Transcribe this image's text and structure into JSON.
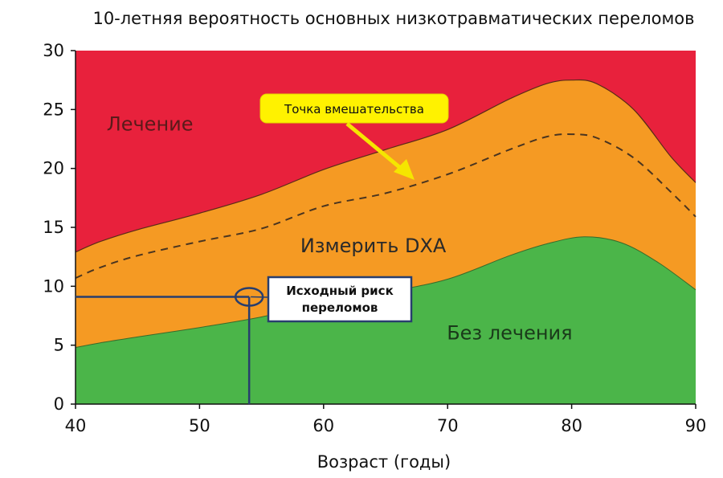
{
  "chart_data": {
    "type": "area",
    "title": "10-летняя вероятность основных низкотравматических переломов",
    "xlabel": "Возраст (годы)",
    "ylabel": "",
    "xlim": [
      40,
      90
    ],
    "ylim": [
      0,
      30
    ],
    "x_ticks": [
      40,
      50,
      60,
      70,
      80,
      90
    ],
    "y_ticks": [
      0,
      5,
      10,
      15,
      20,
      25,
      30
    ],
    "colors": {
      "treatment": "#e8213c",
      "measure": "#f59a23",
      "no_treatment": "#4bb549",
      "callout_border": "#283e6e",
      "marker_line": "#283e6e",
      "intervention_fill": "#fff200",
      "intervention_arrow": "#f5e600"
    },
    "regions": [
      {
        "label": "Лечение",
        "color": "#e8213c",
        "label_at": [
          46,
          23.2
        ]
      },
      {
        "label": "Измерить DXA",
        "color": "#f59a23",
        "label_at": [
          64,
          12.9
        ]
      },
      {
        "label": "Без лечения",
        "color": "#4bb549",
        "label_at": [
          75,
          5.5
        ]
      }
    ],
    "upper_threshold": {
      "x": [
        40,
        42,
        45,
        50,
        55,
        60,
        65,
        70,
        75,
        78,
        80,
        82,
        85,
        88,
        90
      ],
      "y": [
        12.9,
        13.8,
        14.8,
        16.2,
        17.8,
        19.9,
        21.6,
        23.3,
        25.9,
        27.2,
        27.5,
        27.2,
        25.0,
        21.0,
        18.8
      ]
    },
    "lower_threshold": {
      "x": [
        40,
        42,
        45,
        50,
        55,
        60,
        65,
        70,
        75,
        78,
        81,
        84,
        87,
        90
      ],
      "y": [
        4.8,
        5.2,
        5.7,
        6.5,
        7.4,
        8.6,
        9.5,
        10.6,
        12.6,
        13.6,
        14.2,
        13.7,
        12.0,
        9.7
      ]
    },
    "intervention_threshold": {
      "x": [
        40,
        42,
        45,
        50,
        55,
        60,
        65,
        70,
        75,
        78,
        80,
        82,
        85,
        88,
        90
      ],
      "y": [
        10.7,
        11.6,
        12.6,
        13.8,
        14.9,
        16.8,
        17.9,
        19.5,
        21.6,
        22.7,
        22.9,
        22.6,
        20.9,
        18.0,
        15.9
      ]
    },
    "baseline_marker": {
      "age": 54,
      "risk": 9.1
    },
    "annotations": {
      "intervention_point": "Точка вмешательства",
      "baseline_risk": [
        "Исходный риск",
        "переломов"
      ]
    }
  }
}
